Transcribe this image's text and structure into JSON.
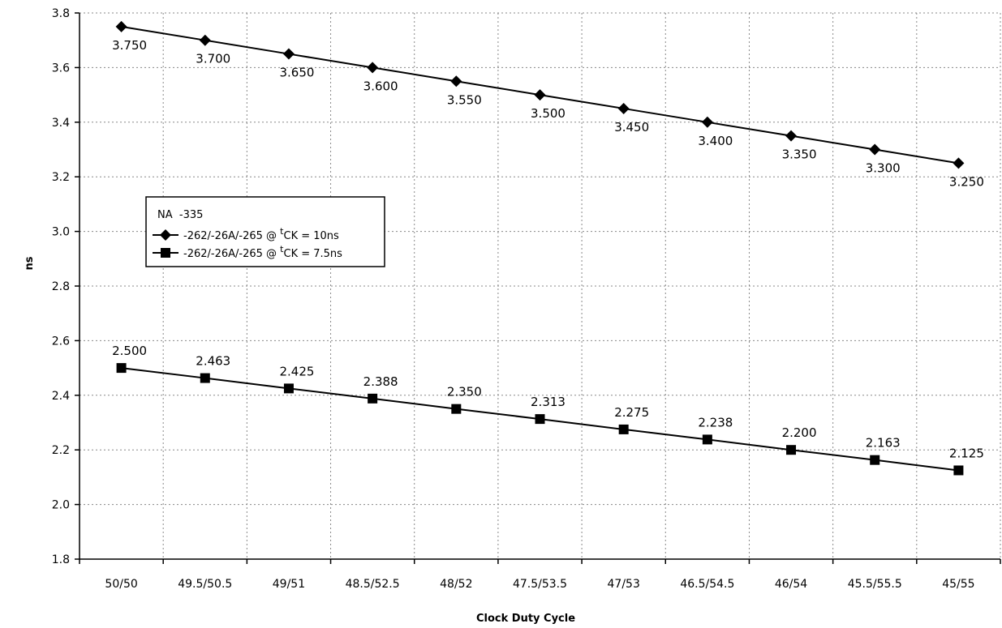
{
  "chart_data": {
    "type": "line",
    "title": "",
    "xlabel": "Clock Duty Cycle",
    "ylabel": "ns",
    "ylim": [
      1.8,
      3.8
    ],
    "yticks": [
      "1.8",
      "2.0",
      "2.2",
      "2.4",
      "2.6",
      "2.8",
      "3.0",
      "3.2",
      "3.4",
      "3.6",
      "3.8"
    ],
    "grid": true,
    "categories": [
      "50/50",
      "49.5/50.5",
      "49/51",
      "48.5/52.5",
      "48/52",
      "47.5/53.5",
      "47/53",
      "46.5/54.5",
      "46/54",
      "45.5/55.5",
      "45/55"
    ],
    "legend": {
      "placement": "left-center",
      "header": "NA  -335",
      "entries": [
        {
          "prefix": "-262/-26A/-265 @ ",
          "sup": "t",
          "suffix": "CK = 10ns",
          "marker": "diamond"
        },
        {
          "prefix": "-262/-26A/-265 @ ",
          "sup": "t",
          "suffix": "CK = 7.5ns",
          "marker": "square"
        }
      ]
    },
    "series": [
      {
        "marker": "diamond",
        "label_position": "below",
        "values": [
          3.75,
          3.7,
          3.65,
          3.6,
          3.55,
          3.5,
          3.45,
          3.4,
          3.35,
          3.3,
          3.25
        ],
        "labels": [
          "3.750",
          "3.700",
          "3.650",
          "3.600",
          "3.550",
          "3.500",
          "3.450",
          "3.400",
          "3.350",
          "3.300",
          "3.250"
        ]
      },
      {
        "marker": "square",
        "label_position": "above",
        "values": [
          2.5,
          2.463,
          2.425,
          2.388,
          2.35,
          2.313,
          2.275,
          2.238,
          2.2,
          2.163,
          2.125
        ],
        "labels": [
          "2.500",
          "2.463",
          "2.425",
          "2.388",
          "2.350",
          "2.313",
          "2.275",
          "2.238",
          "2.200",
          "2.163",
          "2.125"
        ]
      }
    ]
  }
}
